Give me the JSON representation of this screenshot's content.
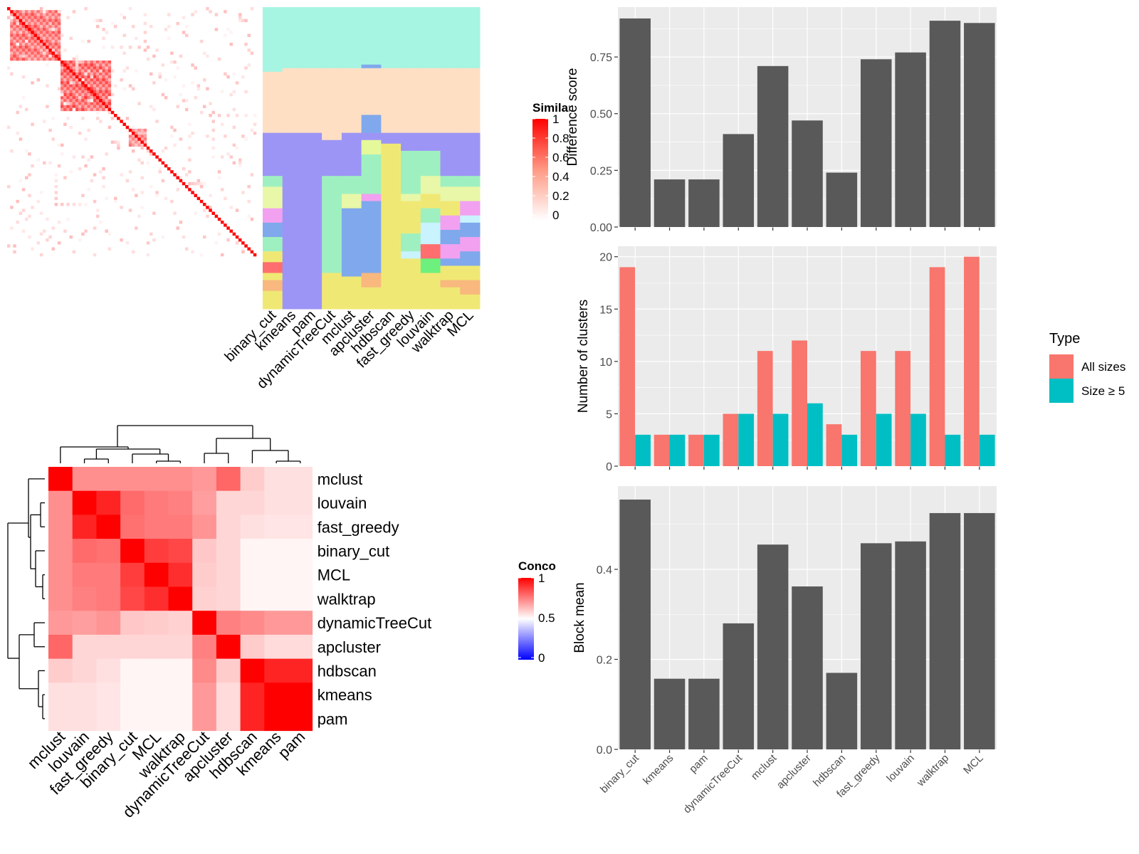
{
  "methods": [
    "binary_cut",
    "kmeans",
    "pam",
    "dynamicTreeCut",
    "mclust",
    "apcluster",
    "hdbscan",
    "fast_greedy",
    "louvain",
    "walktrap",
    "MCL"
  ],
  "similarity_legend": {
    "title": "Similarity",
    "ticks": [
      "1",
      "0.8",
      "0.6",
      "0.4",
      "0.2",
      "0"
    ]
  },
  "concordance_legend": {
    "title": "Concordance",
    "ticks": [
      "1",
      "0.5",
      "0"
    ]
  },
  "type_legend": {
    "title": "Type",
    "items": [
      {
        "label": "All sizes",
        "color": "#F8766D"
      },
      {
        "label": "Size ≥ 5",
        "color": "#00BFC4"
      }
    ]
  },
  "colors": {
    "bar_dark": "#595959",
    "panel_bg": "#EBEBEB",
    "grid": "#FFFFFF",
    "heat_red": "#FF0000",
    "low_blue": "#0000FF"
  },
  "chart_data": [
    {
      "type": "heatmap",
      "title": "",
      "legend": "Similarity",
      "description_range": [
        0,
        1
      ],
      "blocks": [
        {
          "start": 1,
          "end": 18,
          "level": 0.5
        },
        {
          "start": 18,
          "end": 35,
          "level": 0.55
        },
        {
          "start": 41,
          "end": 47,
          "level": 0.4
        }
      ],
      "n": 84
    },
    {
      "type": "heatmap",
      "title": "",
      "x_labels": [
        "binary_cut",
        "kmeans",
        "pam",
        "dynamicTreeCut",
        "mclust",
        "apcluster",
        "hdbscan",
        "fast_greedy",
        "louvain",
        "walktrap",
        "MCL"
      ]
    },
    {
      "type": "heatmap",
      "title": "",
      "legend": "Concordance",
      "row_labels": [
        "mclust",
        "louvain",
        "fast_greedy",
        "binary_cut",
        "MCL",
        "walktrap",
        "dynamicTreeCut",
        "apcluster",
        "hdbscan",
        "kmeans",
        "pam"
      ],
      "col_labels": [
        "mclust",
        "louvain",
        "fast_greedy",
        "binary_cut",
        "MCL",
        "walktrap",
        "dynamicTreeCut",
        "apcluster",
        "hdbscan",
        "kmeans",
        "pam"
      ],
      "values": [
        [
          1.0,
          0.72,
          0.72,
          0.72,
          0.72,
          0.72,
          0.7,
          0.8,
          0.6,
          0.56,
          0.56
        ],
        [
          0.72,
          1.0,
          0.93,
          0.79,
          0.76,
          0.75,
          0.69,
          0.58,
          0.58,
          0.56,
          0.56
        ],
        [
          0.72,
          0.93,
          1.0,
          0.78,
          0.76,
          0.76,
          0.71,
          0.58,
          0.56,
          0.55,
          0.55
        ],
        [
          0.72,
          0.79,
          0.78,
          1.0,
          0.88,
          0.86,
          0.61,
          0.58,
          0.52,
          0.52,
          0.52
        ],
        [
          0.72,
          0.76,
          0.76,
          0.88,
          1.0,
          0.91,
          0.6,
          0.58,
          0.52,
          0.52,
          0.52
        ],
        [
          0.72,
          0.75,
          0.76,
          0.86,
          0.91,
          1.0,
          0.59,
          0.58,
          0.52,
          0.52,
          0.52
        ],
        [
          0.7,
          0.69,
          0.71,
          0.61,
          0.6,
          0.59,
          1.0,
          0.75,
          0.73,
          0.7,
          0.7
        ],
        [
          0.8,
          0.58,
          0.58,
          0.58,
          0.58,
          0.58,
          0.75,
          1.0,
          0.6,
          0.57,
          0.57
        ],
        [
          0.6,
          0.58,
          0.56,
          0.52,
          0.52,
          0.52,
          0.73,
          0.6,
          1.0,
          0.93,
          0.93
        ],
        [
          0.56,
          0.56,
          0.55,
          0.52,
          0.52,
          0.52,
          0.7,
          0.57,
          0.93,
          1.0,
          1.0
        ],
        [
          0.56,
          0.56,
          0.55,
          0.52,
          0.52,
          0.52,
          0.7,
          0.57,
          0.93,
          1.0,
          1.0
        ]
      ],
      "legend_ticks": [
        0,
        0.5,
        1
      ]
    },
    {
      "type": "bar",
      "title": "",
      "categories": [
        "binary_cut",
        "kmeans",
        "pam",
        "dynamicTreeCut",
        "mclust",
        "apcluster",
        "hdbscan",
        "fast_greedy",
        "louvain",
        "walktrap",
        "MCL"
      ],
      "values": [
        0.92,
        0.21,
        0.21,
        0.41,
        0.71,
        0.47,
        0.24,
        0.74,
        0.77,
        0.91,
        0.9
      ],
      "xlabel": "",
      "ylabel": "Difference score",
      "ylim": [
        0,
        0.97
      ],
      "yticks": [
        0,
        0.25,
        0.5,
        0.75
      ],
      "ytick_labels": [
        "0.00",
        "0.25",
        "0.50",
        "0.75"
      ],
      "grid": true
    },
    {
      "type": "bar",
      "title": "",
      "categories": [
        "binary_cut",
        "kmeans",
        "pam",
        "dynamicTreeCut",
        "mclust",
        "apcluster",
        "hdbscan",
        "fast_greedy",
        "louvain",
        "walktrap",
        "MCL"
      ],
      "series": [
        {
          "name": "All sizes",
          "values": [
            19,
            3,
            3,
            5,
            11,
            12,
            4,
            11,
            11,
            19,
            20
          ]
        },
        {
          "name": "Size ≥ 5",
          "values": [
            3,
            3,
            3,
            5,
            5,
            6,
            3,
            5,
            5,
            3,
            3
          ]
        }
      ],
      "xlabel": "",
      "ylabel": "Number of clusters",
      "ylim": [
        0,
        21
      ],
      "yticks": [
        0,
        5,
        10,
        15,
        20
      ],
      "ytick_labels": [
        "0",
        "5",
        "10",
        "15",
        "20"
      ],
      "legend_position": "right",
      "grid": true
    },
    {
      "type": "bar",
      "title": "",
      "categories": [
        "binary_cut",
        "kmeans",
        "pam",
        "dynamicTreeCut",
        "mclust",
        "apcluster",
        "hdbscan",
        "fast_greedy",
        "louvain",
        "walktrap",
        "MCL"
      ],
      "values": [
        0.555,
        0.157,
        0.157,
        0.28,
        0.455,
        0.362,
        0.17,
        0.458,
        0.462,
        0.525,
        0.525
      ],
      "xlabel": "",
      "ylabel": "Block mean",
      "ylim": [
        0,
        0.585
      ],
      "yticks": [
        0,
        0.2,
        0.4
      ],
      "ytick_labels": [
        "0.0",
        "0.2",
        "0.4"
      ],
      "grid": true
    }
  ]
}
